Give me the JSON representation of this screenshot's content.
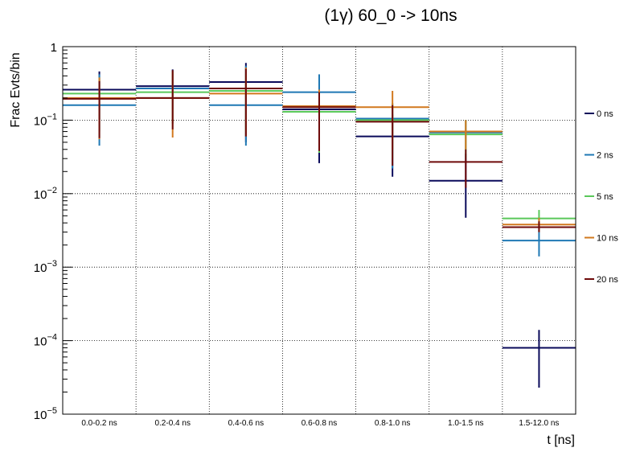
{
  "chart_data": {
    "type": "bar",
    "title": "(1γ) 60_0 -> 10ns",
    "xlabel": "t [ns]",
    "ylabel": "Frac Evts/bin",
    "yscale": "log",
    "ylim": [
      1e-05,
      1
    ],
    "grid": true,
    "legend_position": "right",
    "y_ticks": [
      {
        "base": "1",
        "exp": "",
        "value": 1
      },
      {
        "base": "10",
        "exp": "−1",
        "value": 0.1
      },
      {
        "base": "10",
        "exp": "−2",
        "value": 0.01
      },
      {
        "base": "10",
        "exp": "−3",
        "value": 0.001
      },
      {
        "base": "10",
        "exp": "−4",
        "value": 0.0001
      },
      {
        "base": "10",
        "exp": "−5",
        "value": 1e-05
      }
    ],
    "categories": [
      "0.0-0.2 ns",
      "0.2-0.4 ns",
      "0.4-0.6 ns",
      "0.6-0.8 ns",
      "0.8-1.0 ns",
      "1.0-1.5 ns",
      "1.5-12.0 ns"
    ],
    "series": [
      {
        "name": "0 ns",
        "color": "#0a0a5a",
        "values": [
          0.26,
          0.29,
          0.33,
          0.14,
          0.06,
          0.015,
          8e-05
        ],
        "err_low": [
          0.1,
          0.14,
          0.05,
          0.026,
          0.017,
          0.0047,
          2.3e-05
        ],
        "err_high": [
          0.46,
          0.49,
          0.6,
          0.25,
          0.12,
          0.035,
          0.00014
        ]
      },
      {
        "name": "2 ns",
        "color": "#1f78b4",
        "values": [
          0.16,
          0.27,
          0.16,
          0.24,
          0.105,
          0.068,
          0.0023
        ],
        "err_low": [
          0.045,
          0.09,
          0.045,
          0.09,
          0.022,
          0.04,
          0.0014
        ],
        "err_high": [
          0.42,
          0.48,
          0.55,
          0.42,
          0.17,
          0.1,
          0.0032
        ]
      },
      {
        "name": "5 ns",
        "color": "#5ac85a",
        "values": [
          0.23,
          0.24,
          0.25,
          0.13,
          0.1,
          0.064,
          0.0046
        ],
        "err_low": [
          0.07,
          0.09,
          0.07,
          0.036,
          0.03,
          0.03,
          0.0035
        ],
        "err_high": [
          0.38,
          0.45,
          0.42,
          0.24,
          0.17,
          0.1,
          0.006
        ]
      },
      {
        "name": "10 ns",
        "color": "#d2781e",
        "values": [
          0.2,
          0.2,
          0.23,
          0.155,
          0.15,
          0.07,
          0.0038
        ],
        "err_low": [
          0.055,
          0.058,
          0.06,
          0.04,
          0.04,
          0.04,
          0.003
        ],
        "err_high": [
          0.38,
          0.46,
          0.52,
          0.26,
          0.25,
          0.1,
          0.0047
        ]
      },
      {
        "name": "20 ns",
        "color": "#6e0a0a",
        "values": [
          0.195,
          0.2,
          0.27,
          0.15,
          0.095,
          0.027,
          0.0035
        ],
        "err_low": [
          0.057,
          0.075,
          0.06,
          0.038,
          0.024,
          0.012,
          0.003
        ],
        "err_high": [
          0.34,
          0.48,
          0.5,
          0.24,
          0.16,
          0.04,
          0.0042
        ]
      }
    ]
  }
}
